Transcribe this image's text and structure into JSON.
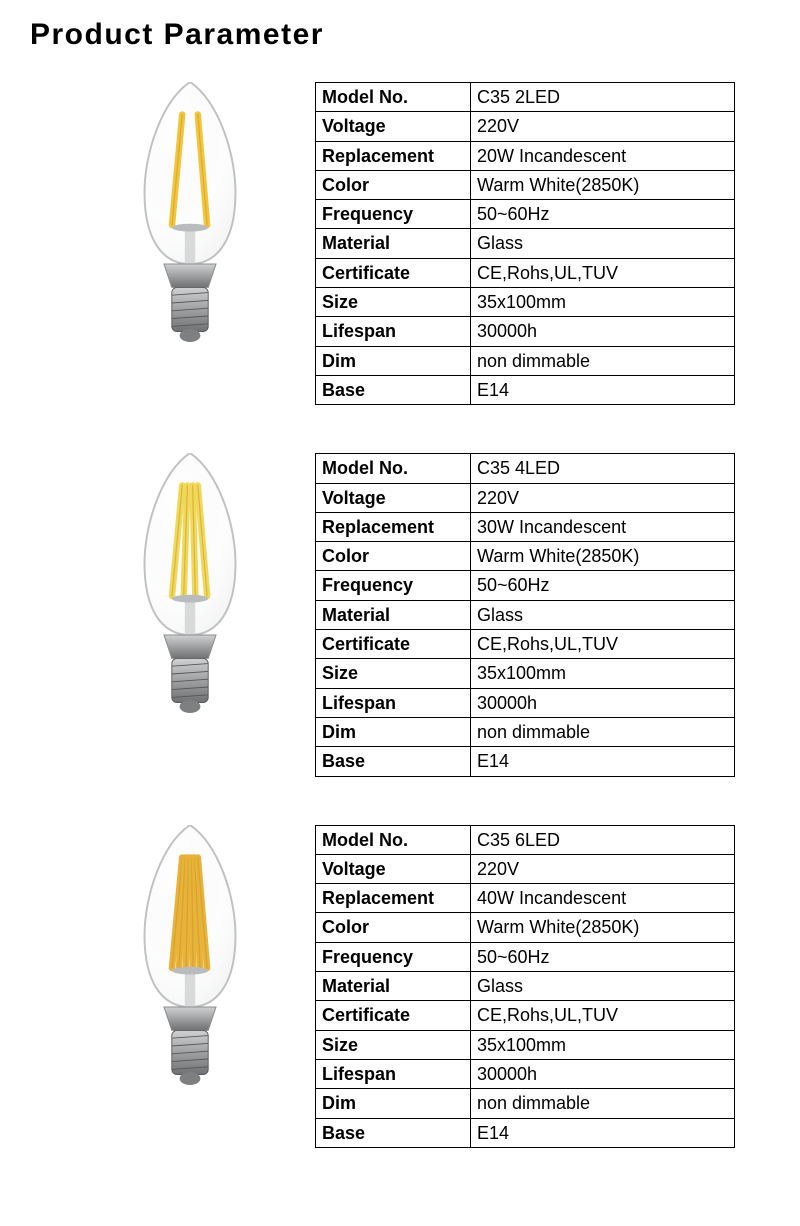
{
  "page": {
    "title": "Product Parameter",
    "background_color": "#ffffff",
    "text_color": "#000000",
    "border_color": "#000000",
    "title_fontsize": 30,
    "cell_fontsize": 18
  },
  "labels": [
    "Model No.",
    "Voltage",
    "Replacement",
    "Color",
    "Frequency",
    "Material",
    "Certificate",
    "Size",
    "Lifespan",
    "Dim",
    "Base"
  ],
  "products": [
    {
      "filaments": 2,
      "filament_color": "#f2c53d",
      "base_color_light": "#cfd1d2",
      "base_color_dark": "#6e7072",
      "glass_outline_color": "#bfc1c2",
      "specs": {
        "model_no": "C35 2LED",
        "voltage": "220V",
        "replacement": "20W Incandescent",
        "color": "Warm White(2850K)",
        "frequency": "50~60Hz",
        "material": "Glass",
        "certificate": "CE,Rohs,UL,TUV",
        "size": "35x100mm",
        "lifespan": "30000h",
        "dim": "non dimmable",
        "base": "E14"
      }
    },
    {
      "filaments": 4,
      "filament_color": "#f2d85a",
      "base_color_light": "#cfd1d2",
      "base_color_dark": "#6e7072",
      "glass_outline_color": "#bfc1c2",
      "specs": {
        "model_no": "C35 4LED",
        "voltage": "220V",
        "replacement": "30W Incandescent",
        "color": "Warm White(2850K)",
        "frequency": "50~60Hz",
        "material": "Glass",
        "certificate": "CE,Rohs,UL,TUV",
        "size": "35x100mm",
        "lifespan": "30000h",
        "dim": "non dimmable",
        "base": "E14"
      }
    },
    {
      "filaments": 6,
      "filament_color": "#e9b23a",
      "base_color_light": "#cfd1d2",
      "base_color_dark": "#6e7072",
      "glass_outline_color": "#bfc1c2",
      "specs": {
        "model_no": "C35 6LED",
        "voltage": "220V",
        "replacement": "40W Incandescent",
        "color": "Warm White(2850K)",
        "frequency": "50~60Hz",
        "material": "Glass",
        "certificate": "CE,Rohs,UL,TUV",
        "size": "35x100mm",
        "lifespan": "30000h",
        "dim": "non dimmable",
        "base": "E14"
      }
    }
  ]
}
